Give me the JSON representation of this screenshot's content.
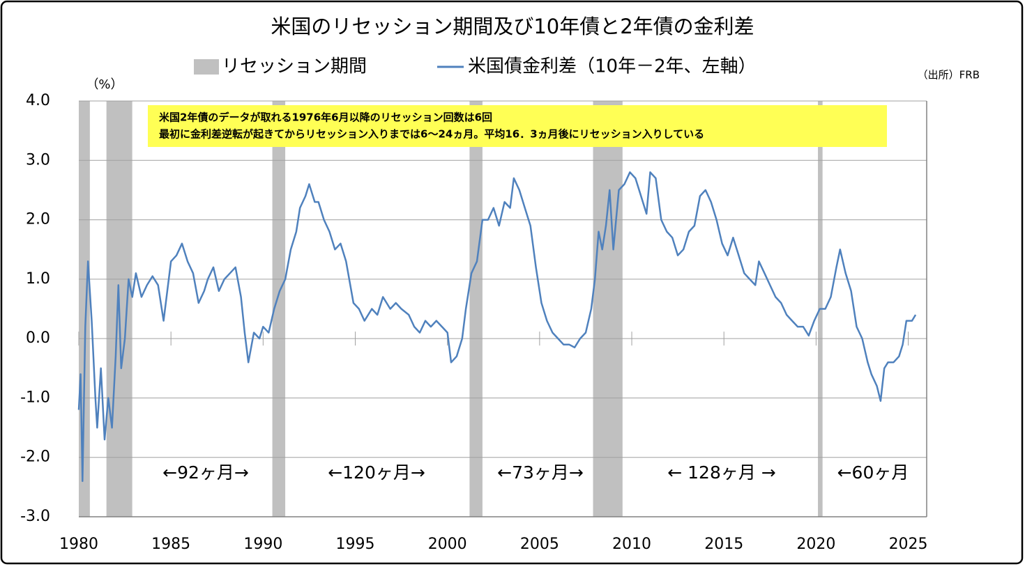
{
  "chart_data": {
    "type": "line",
    "title": "米国のリセッション期間及び10年債と2年債の金利差",
    "y_axis_label": "（%）",
    "source": "（出所）FRB",
    "note_lines": [
      "米国2年債のデータが取れる1976年6月以降のリセッション回数は6回",
      "最初に金利差逆転が起きてからリセッション入りまでは6～24ヵ月。平均16．3ヵ月後にリセッション入りしている"
    ],
    "annotations": [
      "←92ヶ月→",
      "←120ヶ月→",
      "←73ヶ月→",
      "← 128ヶ月 →",
      "←60ヶ月"
    ],
    "xlim": [
      1980,
      2026
    ],
    "xticks": [
      1980,
      1985,
      1990,
      1995,
      2000,
      2005,
      2010,
      2015,
      2020,
      2025
    ],
    "ylim": [
      -3,
      4
    ],
    "yticks": [
      {
        "value": 4,
        "label": "4.0"
      },
      {
        "value": 3,
        "label": "3.0"
      },
      {
        "value": 2,
        "label": "2.0"
      },
      {
        "value": 1,
        "label": "1.0"
      },
      {
        "value": 0,
        "label": "0.0"
      },
      {
        "value": -1,
        "label": "-1.0"
      },
      {
        "value": -2,
        "label": "-2.0"
      },
      {
        "value": -3,
        "label": "-3.0"
      }
    ],
    "negative_tick_color": "#e00000",
    "grid": true,
    "series": [
      {
        "name": "リセッション期間",
        "color": "#c0c0c0",
        "type": "band",
        "periods": [
          [
            1980.0,
            1980.6
          ],
          [
            1981.5,
            1982.9
          ],
          [
            1990.5,
            1991.2
          ],
          [
            2001.2,
            2001.9
          ],
          [
            2007.9,
            2009.5
          ],
          [
            2020.1,
            2020.35
          ]
        ]
      },
      {
        "name": "米国債金利差（10年－2年、左軸）",
        "color": "#4f81bd",
        "type": "line",
        "x": [
          1980.0,
          1980.1,
          1980.2,
          1980.35,
          1980.5,
          1980.7,
          1980.9,
          1981.0,
          1981.2,
          1981.4,
          1981.6,
          1981.8,
          1982.0,
          1982.15,
          1982.3,
          1982.5,
          1982.7,
          1982.9,
          1983.1,
          1983.4,
          1983.7,
          1984.0,
          1984.3,
          1984.6,
          1984.8,
          1985.0,
          1985.3,
          1985.6,
          1985.9,
          1986.2,
          1986.5,
          1986.8,
          1987.0,
          1987.3,
          1987.6,
          1987.9,
          1988.2,
          1988.5,
          1988.8,
          1989.0,
          1989.2,
          1989.5,
          1989.8,
          1990.0,
          1990.3,
          1990.6,
          1990.9,
          1991.2,
          1991.5,
          1991.8,
          1992.0,
          1992.3,
          1992.5,
          1992.8,
          1993.0,
          1993.3,
          1993.6,
          1993.9,
          1994.2,
          1994.5,
          1994.9,
          1995.2,
          1995.5,
          1995.9,
          1996.2,
          1996.5,
          1996.9,
          1997.2,
          1997.5,
          1997.9,
          1998.2,
          1998.5,
          1998.8,
          1999.1,
          1999.4,
          1999.7,
          2000.0,
          2000.2,
          2000.5,
          2000.8,
          2001.0,
          2001.3,
          2001.6,
          2001.9,
          2002.2,
          2002.5,
          2002.8,
          2003.1,
          2003.4,
          2003.6,
          2003.9,
          2004.2,
          2004.5,
          2004.8,
          2005.1,
          2005.4,
          2005.7,
          2006.0,
          2006.3,
          2006.6,
          2006.9,
          2007.2,
          2007.5,
          2007.8,
          2008.0,
          2008.2,
          2008.4,
          2008.6,
          2008.8,
          2009.0,
          2009.3,
          2009.6,
          2009.9,
          2010.2,
          2010.5,
          2010.8,
          2011.0,
          2011.3,
          2011.6,
          2011.9,
          2012.2,
          2012.5,
          2012.8,
          2013.1,
          2013.4,
          2013.7,
          2014.0,
          2014.3,
          2014.6,
          2014.9,
          2015.2,
          2015.5,
          2015.8,
          2016.1,
          2016.4,
          2016.7,
          2016.9,
          2017.2,
          2017.5,
          2017.8,
          2018.1,
          2018.4,
          2018.7,
          2019.0,
          2019.3,
          2019.6,
          2019.9,
          2020.2,
          2020.5,
          2020.8,
          2021.1,
          2021.3,
          2021.6,
          2021.9,
          2022.2,
          2022.5,
          2022.8,
          2023.0,
          2023.3,
          2023.5,
          2023.7,
          2023.9,
          2024.2,
          2024.5,
          2024.7,
          2024.9,
          2025.2,
          2025.4
        ],
        "values": [
          -1.2,
          -0.6,
          -2.4,
          0.2,
          1.3,
          0.3,
          -1.0,
          -1.5,
          -0.5,
          -1.7,
          -1.0,
          -1.5,
          -0.3,
          0.9,
          -0.5,
          0.0,
          1.0,
          0.7,
          1.1,
          0.7,
          0.9,
          1.05,
          0.9,
          0.3,
          0.8,
          1.3,
          1.4,
          1.6,
          1.3,
          1.1,
          0.6,
          0.8,
          1.0,
          1.2,
          0.8,
          1.0,
          1.1,
          1.2,
          0.7,
          0.1,
          -0.4,
          0.1,
          0.0,
          0.2,
          0.1,
          0.5,
          0.8,
          1.0,
          1.5,
          1.8,
          2.2,
          2.4,
          2.6,
          2.3,
          2.3,
          2.0,
          1.8,
          1.5,
          1.6,
          1.3,
          0.6,
          0.5,
          0.3,
          0.5,
          0.4,
          0.7,
          0.5,
          0.6,
          0.5,
          0.4,
          0.2,
          0.1,
          0.3,
          0.2,
          0.3,
          0.2,
          0.1,
          -0.4,
          -0.3,
          0.0,
          0.5,
          1.1,
          1.3,
          2.0,
          2.0,
          2.2,
          1.9,
          2.3,
          2.2,
          2.7,
          2.5,
          2.2,
          1.9,
          1.2,
          0.6,
          0.3,
          0.1,
          0.0,
          -0.1,
          -0.1,
          -0.15,
          0.0,
          0.1,
          0.5,
          1.0,
          1.8,
          1.5,
          1.9,
          2.5,
          1.5,
          2.5,
          2.6,
          2.8,
          2.7,
          2.4,
          2.1,
          2.8,
          2.7,
          2.0,
          1.8,
          1.7,
          1.4,
          1.5,
          1.8,
          1.9,
          2.4,
          2.5,
          2.3,
          2.0,
          1.6,
          1.4,
          1.7,
          1.4,
          1.1,
          1.0,
          0.9,
          1.3,
          1.1,
          0.9,
          0.7,
          0.6,
          0.4,
          0.3,
          0.2,
          0.2,
          0.05,
          0.3,
          0.5,
          0.5,
          0.7,
          1.2,
          1.5,
          1.1,
          0.8,
          0.2,
          0.0,
          -0.4,
          -0.6,
          -0.8,
          -1.05,
          -0.5,
          -0.4,
          -0.4,
          -0.3,
          -0.1,
          0.3,
          0.3,
          0.4
        ]
      }
    ]
  }
}
